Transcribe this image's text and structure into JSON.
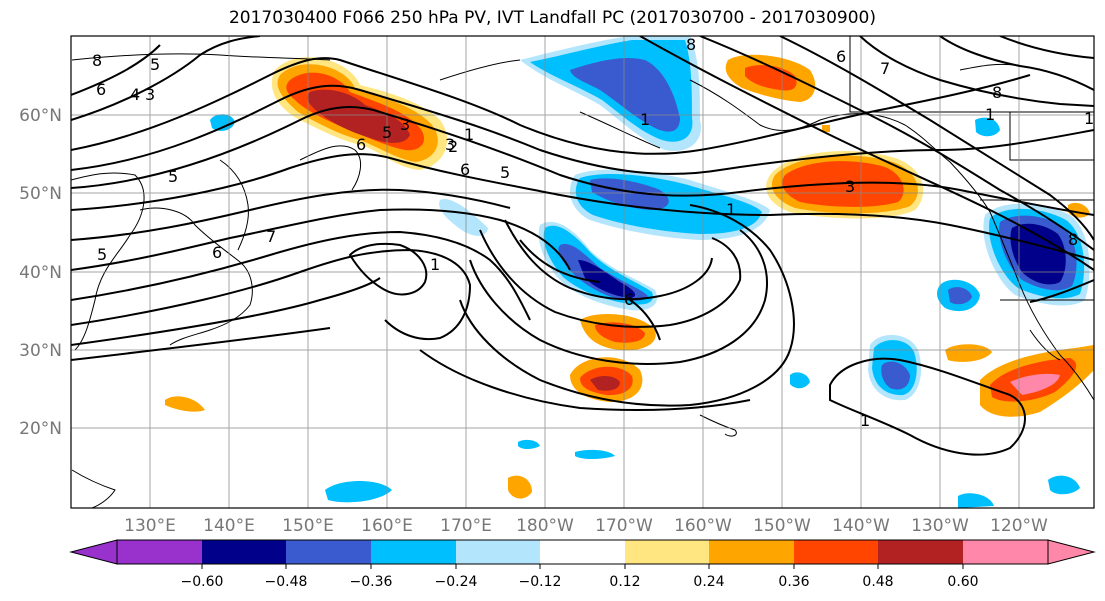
{
  "title": "2017030400 F066 250 hPa PV, IVT Landfall PC (2017030700 - 2017030900)",
  "map": {
    "lon_labels": [
      "130°E",
      "140°E",
      "150°E",
      "160°E",
      "170°E",
      "180°W",
      "170°W",
      "160°W",
      "150°W",
      "140°W",
      "130°W",
      "120°W"
    ],
    "lat_labels": [
      "60°N",
      "50°N",
      "40°N",
      "30°N",
      "20°N"
    ],
    "grid": true,
    "colors": {
      "darkblue": "#00008b",
      "blue": "#3a5bd0",
      "cyan": "#00bfff",
      "lightblue": "#b3e5fc",
      "yellow": "#ffe680",
      "orange": "#ffa500",
      "redorange": "#ff4500",
      "darkred": "#b22222",
      "pink": "#ff88aa",
      "purple": "#9932cc"
    }
  },
  "contour_labels": [
    "8",
    "5",
    "6",
    "4",
    "3",
    "5",
    "1",
    "7",
    "6",
    "3",
    "1",
    "5",
    "6",
    "1",
    "6",
    "5",
    "3",
    "2",
    "8",
    "6",
    "7",
    "8",
    "1",
    "1",
    "1",
    "1",
    "3",
    "6",
    "8",
    "5"
  ],
  "colorbar": {
    "levels": [
      "−0.60",
      "−0.48",
      "−0.36",
      "−0.24",
      "−0.12",
      "0.12",
      "0.24",
      "0.36",
      "0.48",
      "0.60"
    ],
    "colors": [
      "#9932cc",
      "#00008b",
      "#3a5bd0",
      "#00bfff",
      "#b3e5fc",
      "#ffffff",
      "#ffe680",
      "#ffa500",
      "#ff4500",
      "#b22222",
      "#ff88aa"
    ]
  }
}
